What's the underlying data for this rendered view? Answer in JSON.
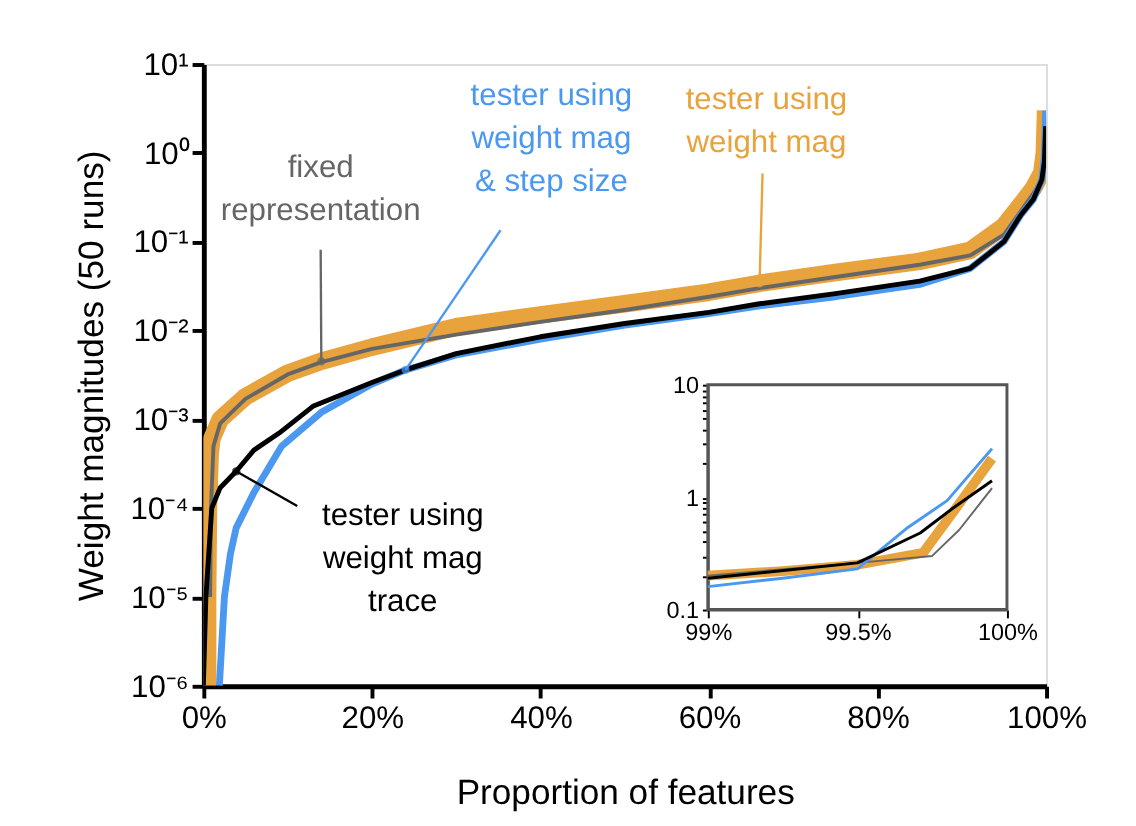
{
  "chart_data": [
    {
      "type": "line",
      "xlabel": "Proportion of features",
      "ylabel": "Weight magnitudes (50 runs)",
      "log": "y",
      "xlim": [
        0,
        100
      ],
      "xticks": [
        {
          "value": 0,
          "label": "0%"
        },
        {
          "value": 20,
          "label": "20%"
        },
        {
          "value": 40,
          "label": "40%"
        },
        {
          "value": 60,
          "label": "60%"
        },
        {
          "value": 80,
          "label": "80%"
        },
        {
          "value": 100,
          "label": "100%"
        }
      ],
      "ylim": [
        1e-06,
        10
      ],
      "yticks": [
        {
          "value": 1e-06,
          "label": "10⁻⁶"
        },
        {
          "value": 1e-05,
          "label": "10⁻⁵"
        },
        {
          "value": 0.0001,
          "label": "10⁻⁴"
        },
        {
          "value": 0.001,
          "label": "10⁻³"
        },
        {
          "value": 0.01,
          "label": "10⁻²"
        },
        {
          "value": 0.1,
          "label": "10⁻¹"
        },
        {
          "value": 1,
          "label": "10⁰"
        },
        {
          "value": 10,
          "label": "10¹"
        }
      ],
      "series": [
        {
          "color": "#e8a33d",
          "x": [
            0.5,
            0.5,
            0.6,
            0.8,
            1,
            2,
            5,
            10,
            14,
            20,
            30,
            40,
            50,
            60,
            66,
            75,
            85,
            91,
            95,
            97,
            98.5,
            99.5,
            99.8,
            99.95
          ],
          "values": [
            1e-06,
            1e-05,
            0.0001,
            0.0004,
            0.0006,
            0.001,
            0.0018,
            0.0033,
            0.0045,
            0.0065,
            0.011,
            0.015,
            0.02,
            0.027,
            0.034,
            0.045,
            0.06,
            0.08,
            0.15,
            0.26,
            0.4,
            0.6,
            1,
            3
          ]
        },
        {
          "color": "#666666",
          "x": [
            0.8,
            0.9,
            1.2,
            2,
            5,
            10,
            14,
            20,
            30,
            40,
            50,
            60,
            66,
            75,
            85,
            91,
            95,
            97,
            98.5,
            99.5,
            99.8,
            99.95
          ],
          "values": [
            1e-05,
            0.0001,
            0.0005,
            0.0009,
            0.0017,
            0.0032,
            0.0044,
            0.0062,
            0.009,
            0.0125,
            0.017,
            0.024,
            0.03,
            0.04,
            0.055,
            0.07,
            0.12,
            0.22,
            0.35,
            0.5,
            0.8,
            2.5
          ]
        },
        {
          "color": "#4a98f0",
          "x": [
            1.9,
            2.5,
            3.2,
            3.9,
            6,
            9.3,
            14,
            20,
            24,
            30,
            40,
            50,
            60,
            66,
            75,
            85,
            91,
            95,
            97,
            98.5,
            99.5,
            99.8,
            99.95
          ],
          "values": [
            1e-06,
            1e-05,
            3e-05,
            6e-05,
            0.00015,
            0.0005,
            0.0012,
            0.0025,
            0.0036,
            0.0053,
            0.008,
            0.0115,
            0.0155,
            0.019,
            0.024,
            0.033,
            0.05,
            0.1,
            0.2,
            0.3,
            0.5,
            0.9,
            3
          ]
        },
        {
          "color": "#000000",
          "x": [
            0,
            0.3,
            1,
            2,
            3.9,
            6,
            9,
            13,
            20,
            24,
            30,
            40,
            50,
            60,
            66,
            75,
            85,
            91,
            95,
            97,
            98.5,
            99.5,
            99.8,
            99.95
          ],
          "values": [
            1e-06,
            1e-05,
            0.0001,
            0.00017,
            0.00026,
            0.00045,
            0.0007,
            0.0014,
            0.0026,
            0.0036,
            0.0055,
            0.0085,
            0.012,
            0.016,
            0.02,
            0.026,
            0.036,
            0.05,
            0.1,
            0.2,
            0.3,
            0.5,
            0.8,
            2
          ]
        }
      ],
      "annotations": [
        {
          "text": "fixed\nrepresentation",
          "x": 14,
          "y": 0.0045
        },
        {
          "text": "tester using\nweight mag\n& step size",
          "x": 24,
          "y": 0.0036
        },
        {
          "text": "tester using\nweight mag",
          "x": 66,
          "y": 0.034
        },
        {
          "text": "tester using\nweight mag\ntrace",
          "x": 3.9,
          "y": 0.00026
        }
      ]
    },
    {
      "type": "line",
      "log": "y",
      "xlim": [
        99,
        100
      ],
      "xticks": [
        {
          "value": 99,
          "label": "99%"
        },
        {
          "value": 99.5,
          "label": "99.5%"
        },
        {
          "value": 100,
          "label": "100%"
        }
      ],
      "ylim": [
        0.1,
        10
      ],
      "yticks": [
        0.1,
        {
          "value": 0.2,
          "label": null
        },
        {
          "value": 0.3,
          "label": null
        },
        {
          "value": 0.4,
          "label": null
        },
        {
          "value": 0.5,
          "label": null
        },
        {
          "value": 0.6,
          "label": null
        },
        {
          "value": 0.7,
          "label": null
        },
        {
          "value": 0.8,
          "label": null
        },
        {
          "value": 0.9,
          "label": null
        },
        1,
        {
          "value": 2,
          "label": null
        },
        {
          "value": 3,
          "label": null
        },
        {
          "value": 4,
          "label": null
        },
        {
          "value": 5,
          "label": null
        },
        {
          "value": 6,
          "label": null
        },
        {
          "value": 7,
          "label": null
        },
        {
          "value": 8,
          "label": null
        },
        {
          "value": 9,
          "label": null
        },
        10
      ],
      "series": [
        {
          "color": "#e8a33d",
          "x": [
            99,
            99.25,
            99.5,
            99.72,
            99.84,
            99.95
          ],
          "values": [
            0.2,
            0.22,
            0.25,
            0.32,
            0.87,
            2.2
          ]
        },
        {
          "color": "#666666",
          "x": [
            99,
            99.5,
            99.75,
            99.84,
            99.95
          ],
          "values": [
            0.2,
            0.26,
            0.3,
            0.51,
            1.2
          ]
        },
        {
          "color": "#4a98f0",
          "x": [
            99,
            99.25,
            99.5,
            99.67,
            99.8,
            99.95
          ],
          "values": [
            0.16,
            0.19,
            0.23,
            0.54,
            0.93,
            2.7
          ]
        },
        {
          "color": "#000000",
          "x": [
            99,
            99.5,
            99.71,
            99.82,
            99.95
          ],
          "values": [
            0.19,
            0.26,
            0.48,
            0.8,
            1.4
          ]
        }
      ]
    }
  ]
}
